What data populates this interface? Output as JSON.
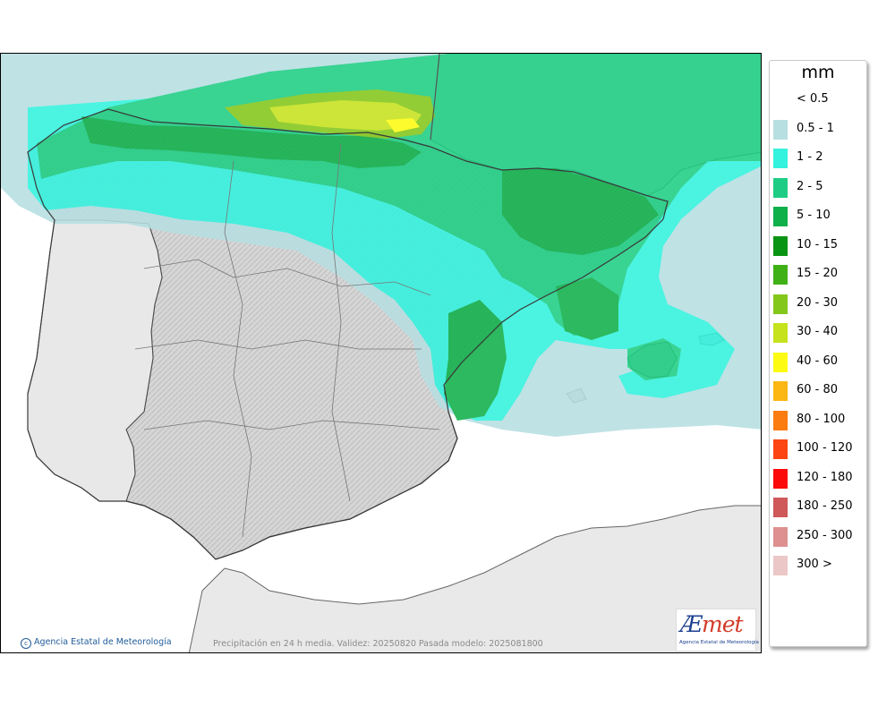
{
  "legend": {
    "unit": "mm",
    "items": [
      {
        "label": "< 0.5",
        "color": null
      },
      {
        "label": "0.5 - 1",
        "color": "#b7dfe2"
      },
      {
        "label": "1 - 2",
        "color": "#33f2de"
      },
      {
        "label": "2 - 5",
        "color": "#1ecd83"
      },
      {
        "label": "5 - 10",
        "color": "#0fb04a"
      },
      {
        "label": "10 - 15",
        "color": "#0a9413"
      },
      {
        "label": "15 - 20",
        "color": "#3fb116"
      },
      {
        "label": "20 - 30",
        "color": "#83c71a"
      },
      {
        "label": "30 - 40",
        "color": "#c5e21d"
      },
      {
        "label": "40 - 60",
        "color": "#fdfb11"
      },
      {
        "label": "60 - 80",
        "color": "#fcb715"
      },
      {
        "label": "80 - 100",
        "color": "#fb7c10"
      },
      {
        "label": "100 - 120",
        "color": "#fc4513"
      },
      {
        "label": "120 - 180",
        "color": "#fb0b0a"
      },
      {
        "label": "180 - 250",
        "color": "#cf5858"
      },
      {
        "label": "250 - 300",
        "color": "#de9090"
      },
      {
        "label": "300 >",
        "color": "#ecc7c7"
      }
    ]
  },
  "credit": {
    "agency": "Agencia Estatal de Meteorología"
  },
  "caption": "Precipitación en 24 h media. Validez: 20250820 Pasada modelo: 2025081800",
  "logo": {
    "prefix": "Æ",
    "main": "met",
    "sub": "Agencia Estatal de Meteorología"
  },
  "map_colors": {
    "sea": "#ffffff",
    "land": "#e8e8e8",
    "relief": "#cfcfcf",
    "border": "#555555"
  }
}
